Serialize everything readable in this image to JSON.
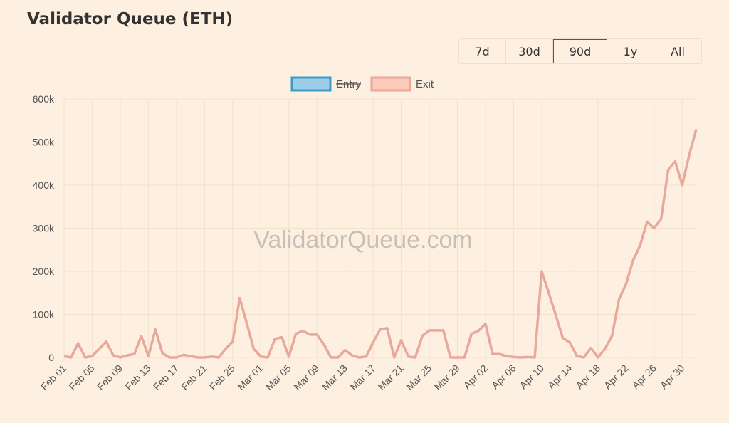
{
  "title": "Validator Queue (ETH)",
  "ranges": [
    "7d",
    "30d",
    "90d",
    "1y",
    "All"
  ],
  "selected_range": 2,
  "watermark": "ValidatorQueue.com",
  "chart_data": {
    "type": "line",
    "legend": [
      {
        "name": "Entry",
        "color": "#9ccde6",
        "border": "#3a9cc8",
        "hidden": true
      },
      {
        "name": "Exit",
        "color": "#fccab8",
        "border": "#e8a89c",
        "hidden": false
      }
    ],
    "categories": [
      "Feb 01",
      null,
      null,
      null,
      "Feb 05",
      null,
      null,
      null,
      "Feb 09",
      null,
      null,
      null,
      "Feb 13",
      null,
      null,
      null,
      "Feb 17",
      null,
      null,
      null,
      "Feb 21",
      null,
      null,
      null,
      "Feb 25",
      null,
      null,
      null,
      "Mar 01",
      null,
      null,
      null,
      "Mar 05",
      null,
      null,
      null,
      "Mar 09",
      null,
      null,
      null,
      "Mar 13",
      null,
      null,
      null,
      "Mar 17",
      null,
      null,
      null,
      "Mar 21",
      null,
      null,
      null,
      "Mar 25",
      null,
      null,
      null,
      "Mar 29",
      null,
      null,
      null,
      "Apr 02",
      null,
      null,
      null,
      "Apr 06",
      null,
      null,
      null,
      "Apr 10",
      null,
      null,
      null,
      "Apr 14",
      null,
      null,
      null,
      "Apr 18",
      null,
      null,
      null,
      "Apr 22",
      null,
      null,
      null,
      "Apr 26",
      null,
      null,
      null,
      "Apr 30",
      null,
      null
    ],
    "series": [
      {
        "name": "Exit",
        "color": "#e8a89c",
        "values": [
          3000,
          0,
          33000,
          0,
          3000,
          20000,
          37000,
          5000,
          0,
          5000,
          8000,
          50000,
          3000,
          65000,
          10000,
          0,
          0,
          6000,
          3000,
          0,
          0,
          2000,
          0,
          20000,
          37000,
          138000,
          80000,
          20000,
          2000,
          0,
          43000,
          47000,
          2000,
          55000,
          62000,
          53000,
          53000,
          30000,
          0,
          0,
          17000,
          5000,
          0,
          2000,
          35000,
          65000,
          68000,
          0,
          40000,
          2000,
          0,
          50000,
          63000,
          63000,
          63000,
          0,
          0,
          0,
          55000,
          62000,
          78000,
          8000,
          8000,
          3000,
          1000,
          0,
          1000,
          0,
          200000,
          150000,
          98000,
          45000,
          35000,
          3000,
          0,
          22000,
          0,
          20000,
          50000,
          135000,
          170000,
          225000,
          260000,
          315000,
          300000,
          322000,
          435000,
          455000,
          400000,
          470000,
          530000
        ]
      }
    ],
    "ylim": [
      0,
      600000
    ],
    "yticks": [
      0,
      {
        "value": 100000,
        "label": "100k"
      },
      {
        "value": 200000,
        "label": "200k"
      },
      {
        "value": 300000,
        "label": "300k"
      },
      {
        "value": 400000,
        "label": "400k"
      },
      {
        "value": 500000,
        "label": "500k"
      },
      {
        "value": 600000,
        "label": "600k"
      }
    ],
    "grid": true
  }
}
